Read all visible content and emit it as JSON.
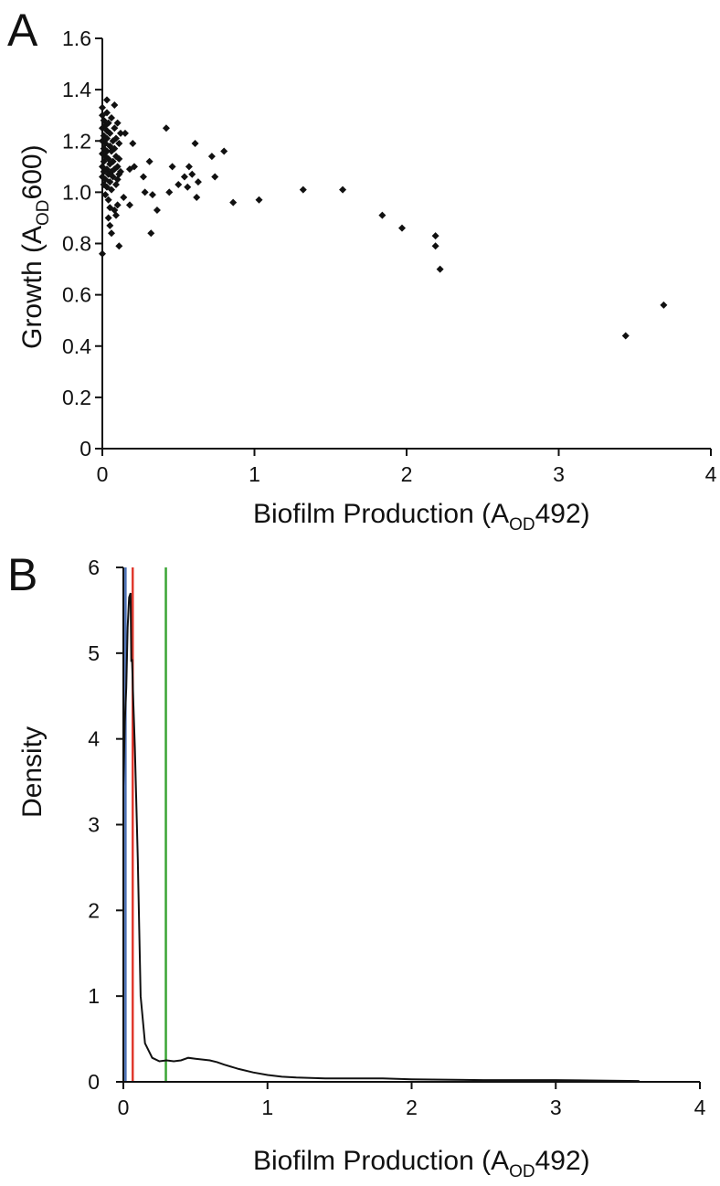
{
  "chart_data": [
    {
      "panel": "A",
      "type": "scatter",
      "title": "",
      "xlabel": {
        "main": "Biofilm Production (A",
        "sub": "OD",
        "tail": "492)"
      },
      "ylabel": {
        "main": "Growth (A",
        "sub": "OD",
        "tail": "600)"
      },
      "xlim": [
        0,
        4
      ],
      "ylim": [
        0,
        1.6
      ],
      "xticks": [
        "0",
        "1",
        "2",
        "3",
        "4"
      ],
      "yticks": [
        "0",
        "0.2",
        "0.4",
        "0.6",
        "0.8",
        "1.0",
        "1.2",
        "1.4",
        "1.6"
      ],
      "grid": false,
      "marker": "diamond",
      "color": "#111111",
      "points": [
        [
          0.0,
          0.76
        ],
        [
          0.0,
          1.33
        ],
        [
          0.0,
          1.3
        ],
        [
          0.0,
          1.25
        ],
        [
          0.0,
          1.2
        ],
        [
          0.0,
          1.15
        ],
        [
          0.0,
          1.1
        ],
        [
          0.0,
          1.06
        ],
        [
          0.01,
          1.28
        ],
        [
          0.01,
          1.22
        ],
        [
          0.01,
          1.17
        ],
        [
          0.01,
          1.12
        ],
        [
          0.01,
          1.08
        ],
        [
          0.01,
          1.03
        ],
        [
          0.02,
          1.26
        ],
        [
          0.02,
          1.19
        ],
        [
          0.02,
          1.14
        ],
        [
          0.02,
          1.05
        ],
        [
          0.02,
          0.99
        ],
        [
          0.03,
          1.36
        ],
        [
          0.03,
          1.31
        ],
        [
          0.03,
          1.24
        ],
        [
          0.03,
          1.21
        ],
        [
          0.03,
          1.16
        ],
        [
          0.03,
          1.09
        ],
        [
          0.03,
          1.02
        ],
        [
          0.04,
          1.27
        ],
        [
          0.04,
          1.13
        ],
        [
          0.04,
          1.07
        ],
        [
          0.04,
          0.97
        ],
        [
          0.04,
          0.9
        ],
        [
          0.05,
          1.23
        ],
        [
          0.05,
          1.18
        ],
        [
          0.05,
          1.11
        ],
        [
          0.05,
          1.04
        ],
        [
          0.05,
          0.94
        ],
        [
          0.05,
          0.87
        ],
        [
          0.06,
          1.29
        ],
        [
          0.06,
          1.16
        ],
        [
          0.06,
          1.08
        ],
        [
          0.06,
          1.01
        ],
        [
          0.06,
          0.84
        ],
        [
          0.07,
          1.2
        ],
        [
          0.07,
          1.12
        ],
        [
          0.07,
          1.06
        ],
        [
          0.08,
          1.34
        ],
        [
          0.08,
          1.25
        ],
        [
          0.08,
          1.17
        ],
        [
          0.08,
          1.09
        ],
        [
          0.08,
          0.93
        ],
        [
          0.09,
          1.21
        ],
        [
          0.09,
          1.14
        ],
        [
          0.09,
          1.03
        ],
        [
          0.09,
          0.91
        ],
        [
          0.1,
          1.27
        ],
        [
          0.1,
          1.1
        ],
        [
          0.1,
          1.05
        ],
        [
          0.1,
          0.95
        ],
        [
          0.11,
          1.19
        ],
        [
          0.11,
          1.13
        ],
        [
          0.11,
          1.07
        ],
        [
          0.11,
          0.79
        ],
        [
          0.12,
          1.23
        ],
        [
          0.12,
          1.08
        ],
        [
          0.14,
          0.98
        ],
        [
          0.15,
          1.23
        ],
        [
          0.18,
          1.09
        ],
        [
          0.18,
          0.95
        ],
        [
          0.2,
          1.19
        ],
        [
          0.21,
          1.1
        ],
        [
          0.27,
          1.06
        ],
        [
          0.28,
          1.0
        ],
        [
          0.31,
          1.12
        ],
        [
          0.32,
          0.84
        ],
        [
          0.33,
          0.99
        ],
        [
          0.36,
          0.93
        ],
        [
          0.42,
          1.25
        ],
        [
          0.44,
          1.0
        ],
        [
          0.46,
          1.1
        ],
        [
          0.5,
          1.03
        ],
        [
          0.54,
          1.06
        ],
        [
          0.56,
          1.02
        ],
        [
          0.57,
          1.1
        ],
        [
          0.59,
          1.07
        ],
        [
          0.61,
          1.19
        ],
        [
          0.62,
          0.98
        ],
        [
          0.63,
          1.04
        ],
        [
          0.72,
          1.14
        ],
        [
          0.74,
          1.06
        ],
        [
          0.8,
          1.16
        ],
        [
          0.86,
          0.96
        ],
        [
          1.03,
          0.97
        ],
        [
          1.32,
          1.01
        ],
        [
          1.58,
          1.01
        ],
        [
          1.84,
          0.91
        ],
        [
          1.97,
          0.86
        ],
        [
          2.19,
          0.83
        ],
        [
          2.19,
          0.79
        ],
        [
          2.22,
          0.7
        ],
        [
          3.44,
          0.44
        ],
        [
          3.69,
          0.56
        ]
      ]
    },
    {
      "panel": "B",
      "type": "line",
      "title": "",
      "xlabel": {
        "main": "Biofilm Production (A",
        "sub": "OD",
        "tail": "492)"
      },
      "ylabel": {
        "main": "Density",
        "sub": "",
        "tail": ""
      },
      "xlim": [
        0,
        4
      ],
      "ylim": [
        0,
        6
      ],
      "xticks": [
        "0",
        "1",
        "2",
        "3",
        "4"
      ],
      "yticks": [
        "0",
        "1",
        "2",
        "3",
        "4",
        "5",
        "6"
      ],
      "grid": false,
      "series": [
        {
          "color": "#111111",
          "x": [
            0.0,
            0.01,
            0.02,
            0.03,
            0.04,
            0.05,
            0.055,
            0.06,
            0.07,
            0.08,
            0.1,
            0.12,
            0.15,
            0.2,
            0.25,
            0.3,
            0.35,
            0.4,
            0.45,
            0.5,
            0.55,
            0.6,
            0.65,
            0.7,
            0.8,
            0.9,
            1.0,
            1.1,
            1.2,
            1.4,
            1.6,
            1.8,
            2.0,
            2.5,
            3.0,
            3.58
          ],
          "y": [
            3.45,
            4.2,
            4.6,
            5.3,
            5.65,
            5.7,
            4.9,
            4.93,
            4.4,
            3.9,
            2.6,
            1.0,
            0.45,
            0.28,
            0.24,
            0.25,
            0.24,
            0.25,
            0.28,
            0.27,
            0.26,
            0.25,
            0.23,
            0.2,
            0.15,
            0.11,
            0.08,
            0.06,
            0.05,
            0.04,
            0.04,
            0.04,
            0.03,
            0.02,
            0.02,
            0.01
          ]
        }
      ],
      "vlines": [
        {
          "x": 0.015,
          "color": "#4a6fb5"
        },
        {
          "x": 0.065,
          "color": "#e03a2f"
        },
        {
          "x": 0.295,
          "color": "#3aa535"
        }
      ]
    }
  ]
}
